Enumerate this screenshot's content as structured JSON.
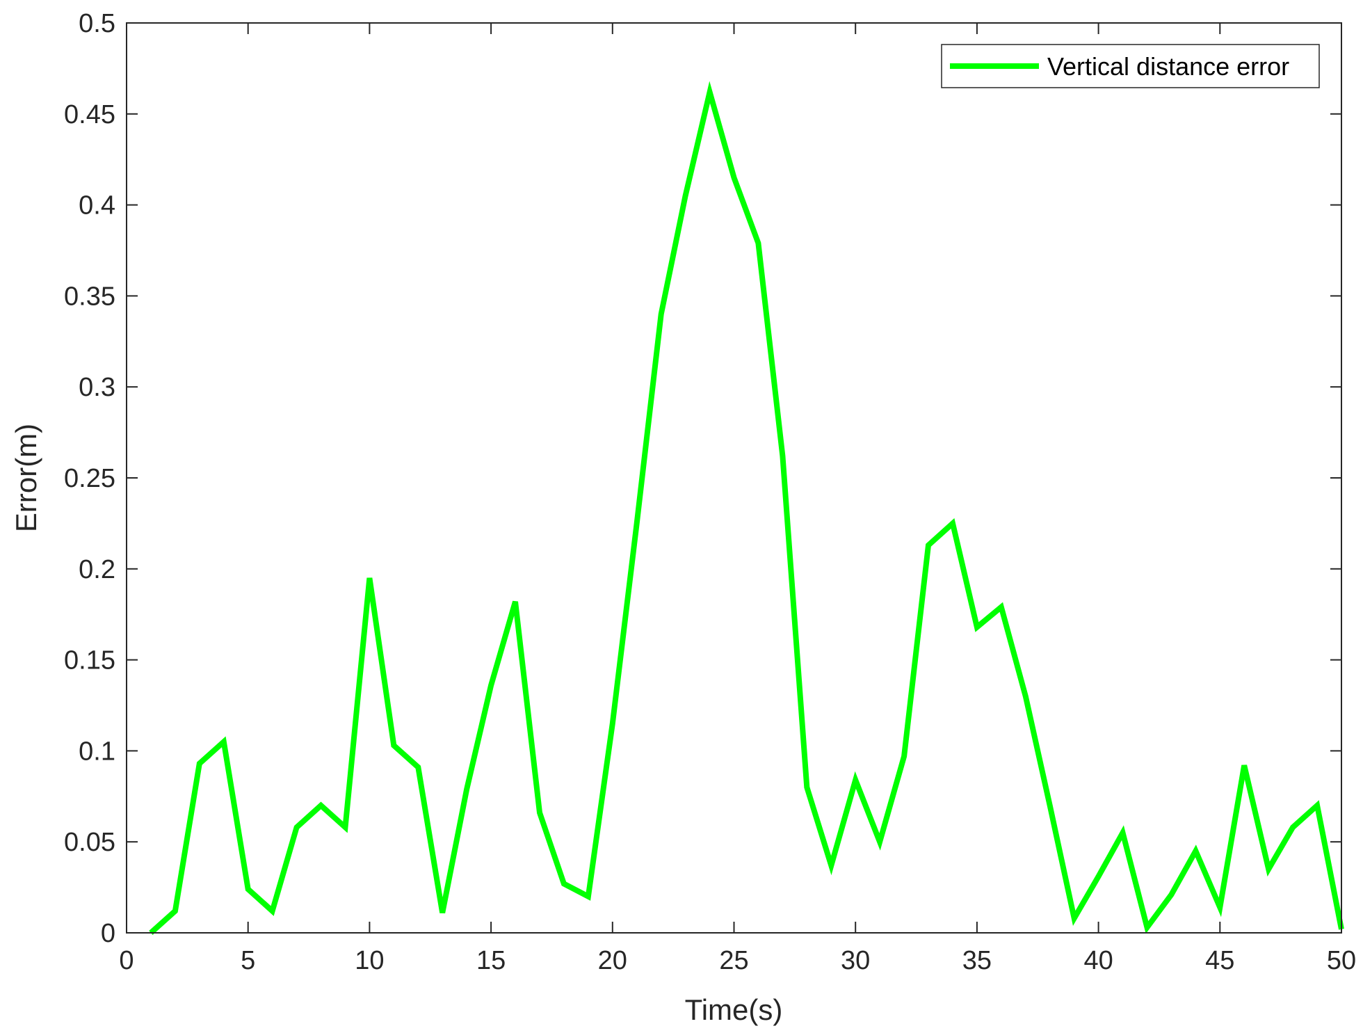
{
  "chart_data": {
    "type": "line",
    "title": "",
    "xlabel": "Time(s)",
    "ylabel": "Error(m)",
    "xlim": [
      0,
      50
    ],
    "ylim": [
      0,
      0.5
    ],
    "xticks": [
      0,
      5,
      10,
      15,
      20,
      25,
      30,
      35,
      40,
      45,
      50
    ],
    "yticks": [
      0,
      0.05,
      0.1,
      0.15,
      0.2,
      0.25,
      0.3,
      0.35,
      0.4,
      0.45,
      0.5
    ],
    "xtick_labels": [
      "0",
      "5",
      "10",
      "15",
      "20",
      "25",
      "30",
      "35",
      "40",
      "45",
      "50"
    ],
    "ytick_labels": [
      "0",
      "0.05",
      "0.1",
      "0.15",
      "0.2",
      "0.25",
      "0.3",
      "0.35",
      "0.4",
      "0.45",
      "0.5"
    ],
    "grid": false,
    "legend_position": "top-right",
    "series": [
      {
        "name": "Vertical distance error",
        "color": "#00ff00",
        "x": [
          1,
          2,
          3,
          4,
          5,
          6,
          7,
          8,
          9,
          10,
          11,
          12,
          13,
          14,
          15,
          16,
          17,
          18,
          19,
          20,
          21,
          22,
          23,
          24,
          25,
          26,
          27,
          28,
          29,
          30,
          31,
          32,
          33,
          34,
          35,
          36,
          37,
          38,
          39,
          40,
          41,
          42,
          43,
          44,
          45,
          46,
          47,
          48,
          49,
          50
        ],
        "y": [
          0.0,
          0.012,
          0.093,
          0.105,
          0.024,
          0.012,
          0.058,
          0.07,
          0.058,
          0.195,
          0.103,
          0.091,
          0.011,
          0.079,
          0.136,
          0.182,
          0.066,
          0.027,
          0.02,
          0.115,
          0.225,
          0.34,
          0.405,
          0.462,
          0.415,
          0.379,
          0.262,
          0.08,
          0.037,
          0.084,
          0.05,
          0.097,
          0.213,
          0.225,
          0.168,
          0.179,
          0.13,
          0.07,
          0.008,
          0.031,
          0.055,
          0.003,
          0.021,
          0.045,
          0.014,
          0.092,
          0.035,
          0.058,
          0.07,
          0.002
        ]
      }
    ]
  }
}
